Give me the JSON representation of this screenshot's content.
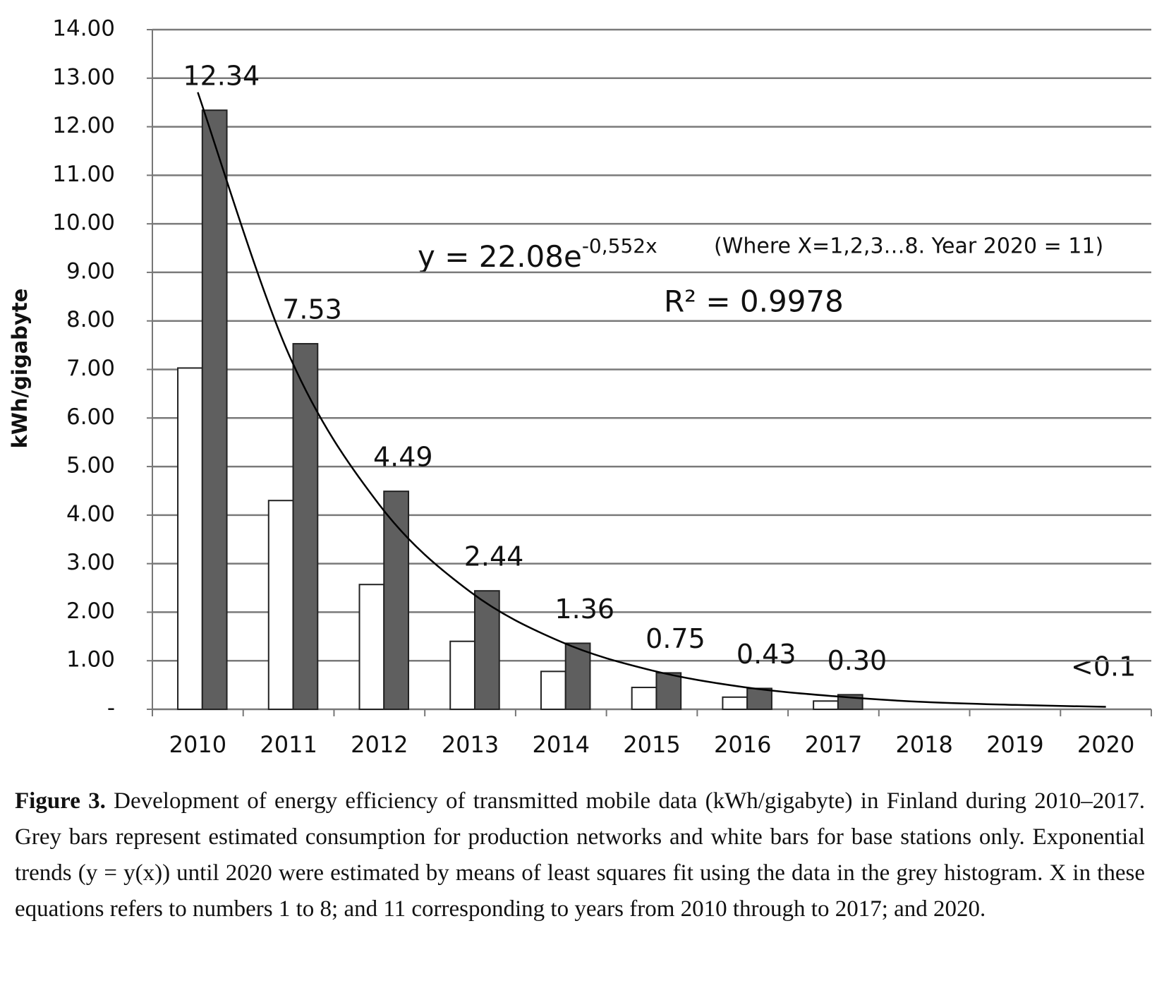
{
  "chart_data": {
    "type": "bar",
    "y_label": "kWh/gigabyte",
    "categories": [
      "2010",
      "2011",
      "2012",
      "2013",
      "2014",
      "2015",
      "2016",
      "2017",
      "2018",
      "2019",
      "2020"
    ],
    "series": [
      {
        "color": "#ffffff",
        "values": [
          7.03,
          4.3,
          2.57,
          1.4,
          0.78,
          0.45,
          0.25,
          0.17,
          null,
          null,
          null
        ]
      },
      {
        "color": "#5f5f5f",
        "values": [
          12.34,
          7.53,
          4.49,
          2.44,
          1.36,
          0.75,
          0.43,
          0.3,
          null,
          null,
          null
        ],
        "value_labels": [
          "12.34",
          "7.53",
          "4.49",
          "2.44",
          "1.36",
          "0.75",
          "0.43",
          "0.30",
          null,
          null,
          null
        ]
      }
    ],
    "trend": {
      "color": "#000000",
      "values": [
        12.71,
        7.32,
        4.21,
        2.42,
        1.39,
        0.8,
        0.46,
        0.27,
        0.15,
        0.09,
        0.05
      ]
    },
    "annotations": {
      "equation": "y = 22.08e",
      "exponent": "-0,552x",
      "note": "(Where X=1,2,3…8. Year 2020 = 11)",
      "r_squared": "R² = 0.9978",
      "last_value": "<0.1"
    },
    "ylim": [
      0,
      14
    ],
    "yticks": [
      {
        "value": 0,
        "label": "-"
      },
      {
        "value": 1,
        "label": "1.00"
      },
      {
        "value": 2,
        "label": "2.00"
      },
      {
        "value": 3,
        "label": "3.00"
      },
      {
        "value": 4,
        "label": "4.00"
      },
      {
        "value": 5,
        "label": "5.00"
      },
      {
        "value": 6,
        "label": "6.00"
      },
      {
        "value": 7,
        "label": "7.00"
      },
      {
        "value": 8,
        "label": "8.00"
      },
      {
        "value": 9,
        "label": "9.00"
      },
      {
        "value": 10,
        "label": "10.00"
      },
      {
        "value": 11,
        "label": "11.00"
      },
      {
        "value": 12,
        "label": "12.00"
      },
      {
        "value": 13,
        "label": "13.00"
      },
      {
        "value": 14,
        "label": "14.00"
      }
    ],
    "grid": true
  },
  "caption": {
    "label": "Figure 3.",
    "text": "Development of energy efficiency of transmitted mobile data (kWh/gigabyte) in Finland during 2010–2017. Grey bars represent estimated consumption for production networks and white bars for base stations only.  Exponential trends (y = y(x)) until 2020 were estimated by means of least squares fit using the data in the grey histogram. X in these equations refers to numbers 1 to 8; and 11 corresponding to years from 2010 through to 2017; and 2020."
  }
}
